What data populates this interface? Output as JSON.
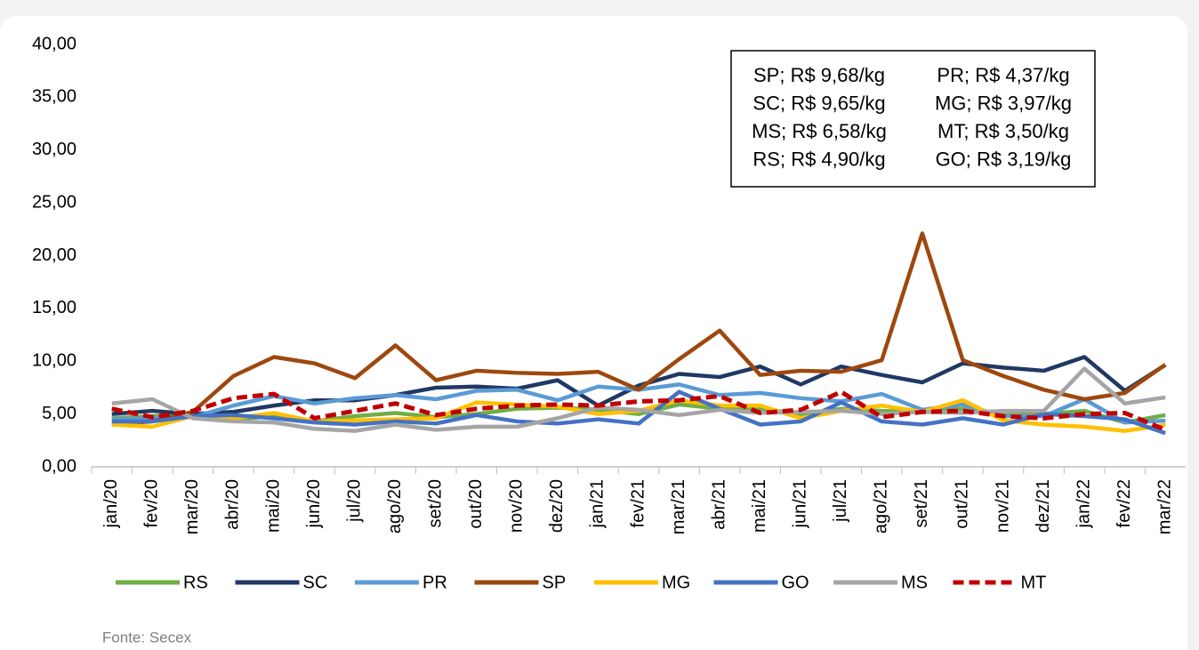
{
  "chart_data": {
    "type": "line",
    "categories": [
      "jan/20",
      "fev/20",
      "mar/20",
      "abr/20",
      "mai/20",
      "jun/20",
      "jul/20",
      "ago/20",
      "set/20",
      "out/20",
      "nov/20",
      "dez/20",
      "jan/21",
      "fev/21",
      "mar/21",
      "abr/21",
      "mai/21",
      "jun/21",
      "jul/21",
      "ago/21",
      "set/21",
      "out/21",
      "nov/21",
      "dez/21",
      "jan/22",
      "fev/22",
      "mar/22"
    ],
    "ylim": [
      0,
      40
    ],
    "yticks": [
      {
        "value": 0,
        "label": "0,00"
      },
      {
        "value": 5,
        "label": "5,00"
      },
      {
        "value": 10,
        "label": "10,00"
      },
      {
        "value": 15,
        "label": "15,00"
      },
      {
        "value": 20,
        "label": "20,00"
      },
      {
        "value": 25,
        "label": "25,00"
      },
      {
        "value": 30,
        "label": "30,00"
      },
      {
        "value": 35,
        "label": "35,00"
      },
      {
        "value": 40,
        "label": "40,00"
      }
    ],
    "legend": "bottom",
    "series": [
      {
        "name": "RS",
        "color": "#70ad47",
        "dashed": false,
        "values": [
          4.6,
          4.8,
          5.0,
          4.5,
          4.8,
          4.3,
          4.8,
          5.1,
          4.7,
          5.0,
          5.5,
          5.6,
          5.4,
          5.0,
          5.9,
          5.5,
          5.5,
          5.0,
          5.5,
          5.3,
          5.2,
          5.5,
          4.9,
          5.0,
          5.3,
          4.2,
          4.9
        ]
      },
      {
        "name": "SC",
        "color": "#203864",
        "dashed": false,
        "values": [
          5.0,
          5.3,
          5.0,
          5.2,
          5.8,
          6.3,
          6.3,
          6.8,
          7.5,
          7.6,
          7.4,
          8.2,
          5.8,
          7.7,
          8.8,
          8.5,
          9.5,
          7.8,
          9.5,
          8.7,
          8.0,
          9.8,
          9.4,
          9.1,
          10.4,
          7.2,
          9.65
        ]
      },
      {
        "name": "PR",
        "color": "#5b9bd5",
        "dashed": false,
        "values": [
          4.5,
          4.6,
          4.7,
          5.8,
          6.7,
          6.0,
          6.5,
          6.8,
          6.4,
          7.2,
          7.3,
          6.3,
          7.6,
          7.3,
          7.8,
          6.8,
          7.0,
          6.5,
          6.2,
          6.9,
          5.4,
          5.9,
          4.8,
          4.8,
          6.4,
          4.2,
          4.37
        ]
      },
      {
        "name": "SP",
        "color": "#9e480e",
        "dashed": false,
        "values": [
          4.0,
          4.3,
          5.2,
          8.6,
          10.4,
          9.8,
          8.4,
          11.5,
          8.2,
          9.1,
          8.9,
          8.8,
          9.0,
          7.3,
          10.2,
          12.9,
          8.7,
          9.1,
          9.0,
          10.1,
          22.1,
          10.1,
          8.6,
          7.3,
          6.4,
          7.0,
          9.68
        ]
      },
      {
        "name": "MG",
        "color": "#ffc000",
        "dashed": false,
        "values": [
          4.0,
          3.8,
          4.8,
          4.6,
          5.1,
          4.3,
          4.4,
          4.5,
          4.6,
          6.1,
          5.9,
          5.7,
          5.0,
          5.3,
          6.3,
          5.8,
          5.8,
          4.6,
          5.3,
          5.8,
          5.2,
          6.3,
          4.4,
          4.0,
          3.8,
          3.4,
          3.97
        ]
      },
      {
        "name": "GO",
        "color": "#4472c4",
        "dashed": false,
        "values": [
          4.3,
          4.3,
          4.8,
          4.9,
          4.6,
          4.2,
          4.0,
          4.3,
          4.1,
          4.9,
          4.3,
          4.1,
          4.5,
          4.1,
          7.1,
          5.5,
          4.0,
          4.3,
          6.1,
          4.3,
          4.0,
          4.6,
          4.0,
          5.0,
          4.8,
          4.5,
          3.19
        ]
      },
      {
        "name": "MS",
        "color": "#a5a5a5",
        "dashed": false,
        "values": [
          6.0,
          6.4,
          4.6,
          4.3,
          4.2,
          3.6,
          3.4,
          4.0,
          3.5,
          3.8,
          3.8,
          4.6,
          5.6,
          5.4,
          4.9,
          5.4,
          5.1,
          5.2,
          5.3,
          5.0,
          5.2,
          5.1,
          5.3,
          5.3,
          9.3,
          6.0,
          6.58
        ]
      },
      {
        "name": "MT",
        "color": "#c00000",
        "dashed": true,
        "values": [
          5.5,
          4.7,
          5.3,
          6.5,
          6.9,
          4.6,
          5.3,
          6.0,
          4.9,
          5.5,
          5.8,
          5.9,
          5.8,
          6.2,
          6.3,
          6.7,
          5.1,
          5.4,
          7.1,
          4.7,
          5.2,
          5.3,
          4.8,
          4.6,
          5.0,
          5.1,
          3.5
        ]
      }
    ],
    "annotations": [
      "SP; R$ 9,68/kg",
      "PR; R$ 4,37/kg",
      "SC; R$ 9,65/kg",
      "MG; R$ 3,97/kg",
      "MS; R$ 6,58/kg",
      "MT; R$ 3,50/kg",
      "RS; R$ 4,90/kg",
      "GO; R$ 3,19/kg"
    ],
    "source": "Fonte: Secex"
  }
}
